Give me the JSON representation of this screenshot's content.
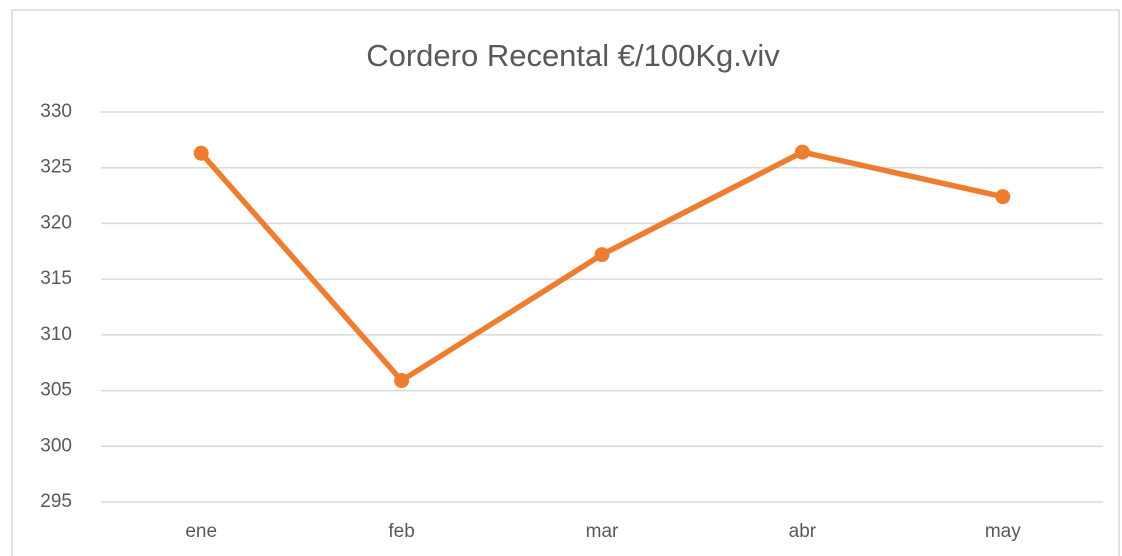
{
  "chart_data": {
    "type": "line",
    "title": "Cordero Recental €/100Kg.viv",
    "categories": [
      "ene",
      "feb",
      "mar",
      "abr",
      "may"
    ],
    "series": [
      {
        "name": "Cordero Recental",
        "color": "#ed7d31",
        "values": [
          326.3,
          305.9,
          317.2,
          326.4,
          322.4
        ]
      }
    ],
    "ylim": [
      295,
      330
    ],
    "yticks": [
      295,
      300,
      305,
      310,
      315,
      320,
      325,
      330
    ],
    "grid": true
  }
}
